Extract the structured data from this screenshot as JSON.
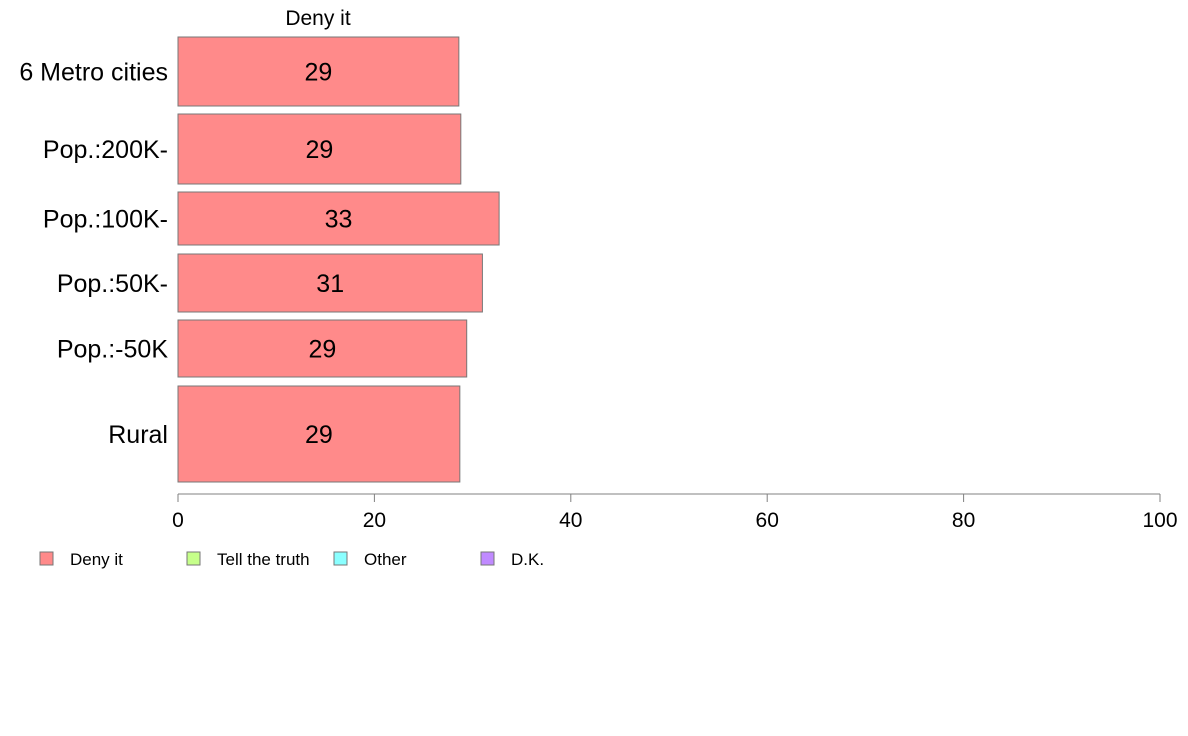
{
  "chart_data": {
    "type": "bar",
    "orientation": "horizontal",
    "panel_title": "Deny it",
    "categories": [
      "6 Metro cities",
      "Pop.:200K-",
      "Pop.:100K-",
      "Pop.:50K-",
      "Pop.:-50K",
      "Rural"
    ],
    "series": [
      {
        "name": "Deny it",
        "values": [
          28.6,
          28.8,
          32.7,
          31.0,
          29.4,
          28.7
        ],
        "labels": [
          "29",
          "29",
          "33",
          "31",
          "29",
          "29"
        ],
        "color": "#ff8a8a"
      }
    ],
    "xlim": [
      0,
      100
    ],
    "xticks": [
      "0",
      "20",
      "40",
      "60",
      "80",
      "100"
    ],
    "xtick_values": [
      0,
      20,
      40,
      60,
      80,
      100
    ],
    "grid": false,
    "legend_position": "bottom-left",
    "legend": [
      {
        "label": "Deny it",
        "color": "#ff8a8a"
      },
      {
        "label": "Tell the truth",
        "color": "#c6ff8a"
      },
      {
        "label": "Other",
        "color": "#8affff"
      },
      {
        "label": "D.K.",
        "color": "#c08aff"
      }
    ]
  }
}
